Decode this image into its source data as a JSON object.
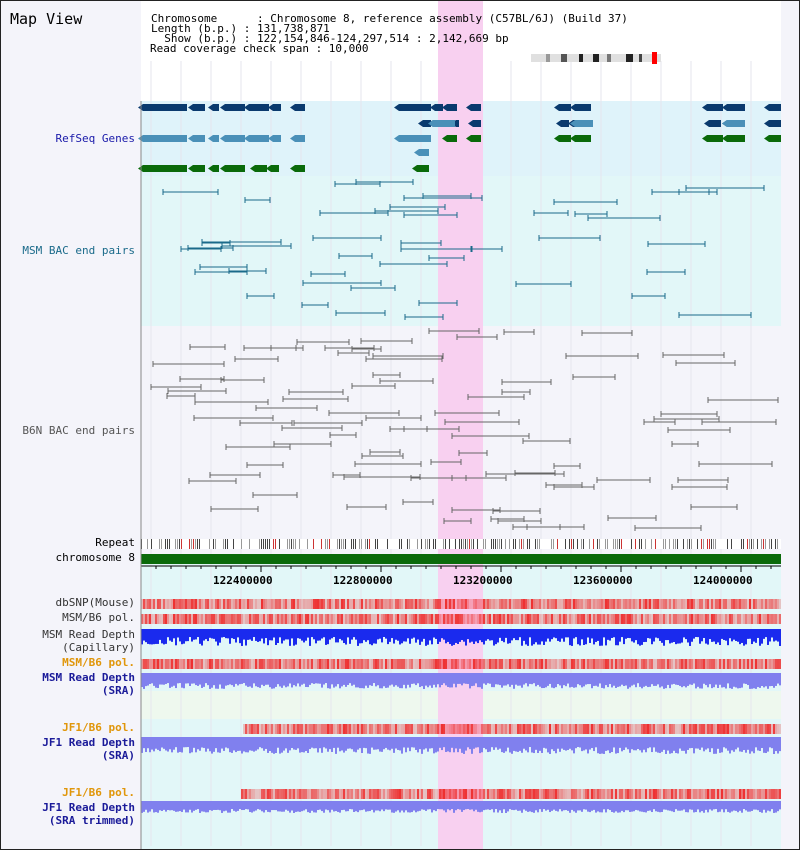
{
  "view_title": "Map View",
  "info": {
    "chromosome_line": "Chromosome      : Chromosome 8, reference assembly (C57BL/6J) (Build 37)",
    "length_line": "Length (b.p.) : 131,738,871",
    "show_line": "  Show (b.p.) : 122,154,846-124,297,514 : 2,142,669 bp",
    "coverage_line": "Read coverage check span : 10,000"
  },
  "labels": {
    "refseq": "RefSeq Genes",
    "msm_bac": "MSM BAC end pairs",
    "b6n_bac": "B6N BAC end pairs",
    "repeat": "Repeat",
    "chromosome": "chromosome 8",
    "dbsnp": "dbSNP(Mouse)",
    "msm_b6_pol_1": "MSM/B6 pol.",
    "msm_depth_cap_1": "MSM Read Depth",
    "msm_depth_cap_2": "(Capillary)",
    "msm_b6_pol_2": "MSM/B6 pol.",
    "msm_depth_sra_1": "MSM Read Depth",
    "msm_depth_sra_2": "(SRA)",
    "jf1_pol_1": "JF1/B6 pol.",
    "jf1_depth_sra_1": "JF1 Read Depth",
    "jf1_depth_sra_2": "(SRA)",
    "jf1_pol_2": "JF1/B6 pol.",
    "jf1_depth_trim_1": "JF1 Read Depth",
    "jf1_depth_trim_2": "(SRA trimmed)"
  },
  "axis_ticks": [
    "122400000",
    "122800000",
    "123200000",
    "123600000",
    "124000000"
  ],
  "colors": {
    "refseq_dark": "#0a3a6e",
    "refseq_mid": "#4a90b8",
    "refseq_green": "#0a6a0a",
    "chromosome_bar": "#0a6a0a",
    "highlight": "#f8d0f0",
    "depth_blue": "#1a2aee",
    "depth_light": "#8080ee",
    "pol_red": "#ee3030"
  }
}
